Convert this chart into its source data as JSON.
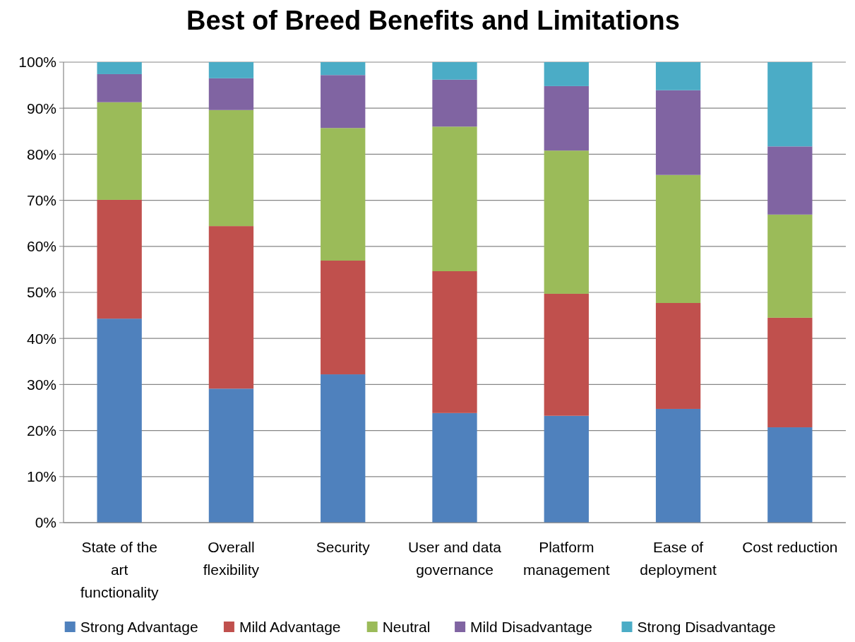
{
  "chart_data": {
    "type": "bar",
    "title": "Best of Breed Benefits and Limitations",
    "stacked": true,
    "categories": [
      "State of the art functionality",
      "Overall flexibility",
      "Security",
      "User and data governance",
      "Platform management",
      "Ease of deployment",
      "Cost reduction"
    ],
    "series": [
      {
        "name": "Strong Advantage",
        "color": "#4f81bd",
        "values": [
          44.3,
          29.1,
          32.2,
          23.8,
          23.2,
          24.7,
          20.7
        ]
      },
      {
        "name": "Mild Advantage",
        "color": "#c0504d",
        "values": [
          25.8,
          35.3,
          24.7,
          30.8,
          26.5,
          23.0,
          23.8
        ]
      },
      {
        "name": "Neutral",
        "color": "#9bbb59",
        "values": [
          21.2,
          25.2,
          28.8,
          31.4,
          31.1,
          27.8,
          22.4
        ]
      },
      {
        "name": "Mild Disadvantage",
        "color": "#8064a2",
        "values": [
          6.1,
          6.9,
          11.5,
          10.2,
          14.0,
          18.4,
          14.8
        ]
      },
      {
        "name": "Strong Disadvantage",
        "color": "#4bacc6",
        "values": [
          2.6,
          3.5,
          2.8,
          3.8,
          5.2,
          6.1,
          18.3
        ]
      }
    ],
    "ylim": [
      0,
      100
    ],
    "yticks": [
      {
        "value": 0,
        "label": "0%"
      },
      {
        "value": 10,
        "label": "10%"
      },
      {
        "value": 20,
        "label": "20%"
      },
      {
        "value": 30,
        "label": "30%"
      },
      {
        "value": 40,
        "label": "40%"
      },
      {
        "value": 50,
        "label": "50%"
      },
      {
        "value": 60,
        "label": "60%"
      },
      {
        "value": 70,
        "label": "70%"
      },
      {
        "value": 80,
        "label": "80%"
      },
      {
        "value": 90,
        "label": "90%"
      },
      {
        "value": 100,
        "label": "100%"
      }
    ],
    "grid": "y",
    "legend": "bottom"
  }
}
